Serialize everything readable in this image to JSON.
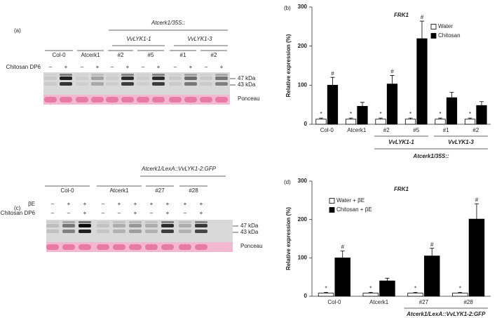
{
  "panels": {
    "a": {
      "label": "(a)",
      "construct": "Atcerk1/35S::",
      "constructs": [
        "VvLYK1-1",
        "VvLYK1-3"
      ],
      "lanes": [
        "Col-0",
        "Atcerk1",
        "#2",
        "#5",
        "#1",
        "#2"
      ],
      "treatments": [
        {
          "name": "Chitosan DP6",
          "signs": [
            "–",
            "+",
            "–",
            "+",
            "–",
            "+",
            "–",
            "+",
            "–",
            "+",
            "–",
            "+"
          ]
        }
      ],
      "sizes": [
        "47 kDa",
        "43 kDa"
      ],
      "stain": "Ponceau"
    },
    "c": {
      "label": "(c)",
      "construct": "Atcerk1/LexA::VvLYK1-2:GFP",
      "lanes": [
        "Col-0",
        "Atcerk1",
        "#27",
        "#28"
      ],
      "treatments": [
        {
          "name": "βE",
          "signs": [
            "–",
            "+",
            "+",
            "–",
            "+",
            "+",
            "+",
            "+",
            "+",
            "+"
          ]
        },
        {
          "name": "Chitosan DP6",
          "signs": [
            "–",
            "–",
            "+",
            "–",
            "–",
            "+",
            "–",
            "+",
            "–",
            "+"
          ]
        }
      ],
      "sizes": [
        "47 kDa",
        "43 kDa"
      ],
      "stain": "Ponceau"
    }
  },
  "chart_data": [
    {
      "type": "bar",
      "panel": "(b)",
      "title": "FRK1",
      "ylabel": "Relative expression (%)",
      "categories": [
        "Col-0",
        "Atcerk1",
        "#2",
        "#5",
        "#1",
        "#2"
      ],
      "category_groups": [
        null,
        null,
        "VvLYK1-1",
        "VvLYK1-1",
        "VvLYK1-3",
        "VvLYK1-3"
      ],
      "group_title": "Atcerk1/35S::",
      "series": [
        {
          "name": "Water",
          "color": "#ffffff",
          "values": [
            13,
            13,
            13,
            13,
            13,
            13
          ],
          "errors": [
            3,
            3,
            3,
            3,
            3,
            3
          ],
          "markers": [
            "*",
            "*",
            "*",
            "*",
            "*",
            "*"
          ]
        },
        {
          "name": "Chitosan",
          "color": "#000000",
          "values": [
            100,
            46,
            103,
            219,
            68,
            48
          ],
          "errors": [
            20,
            10,
            22,
            45,
            14,
            10
          ],
          "markers": [
            "#",
            null,
            "#",
            "#",
            null,
            null
          ]
        }
      ],
      "ylim": [
        0,
        300
      ],
      "yticks": [
        0,
        100,
        200,
        300
      ],
      "legend": "upper right"
    },
    {
      "type": "bar",
      "panel": "(d)",
      "title": "FRK1",
      "ylabel": "Relative expression (%)",
      "categories": [
        "Col-0",
        "Atcerk1",
        "#27",
        "#28"
      ],
      "category_groups": [
        null,
        null,
        "Atcerk1/LexA::VvLYK1-2:GFP",
        "Atcerk1/LexA::VvLYK1-2:GFP"
      ],
      "series": [
        {
          "name": "Water + βE",
          "color": "#ffffff",
          "values": [
            8,
            8,
            8,
            8
          ],
          "errors": [
            2,
            2,
            2,
            2
          ],
          "markers": [
            "*",
            "*",
            "*",
            "*"
          ]
        },
        {
          "name": "Chitosan + βE",
          "color": "#000000",
          "values": [
            100,
            40,
            105,
            201
          ],
          "errors": [
            18,
            7,
            20,
            40
          ],
          "markers": [
            "#",
            null,
            "#",
            "#"
          ]
        }
      ],
      "ylim": [
        0,
        300
      ],
      "yticks": [
        0,
        100,
        200,
        300
      ],
      "legend": "upper left"
    }
  ]
}
